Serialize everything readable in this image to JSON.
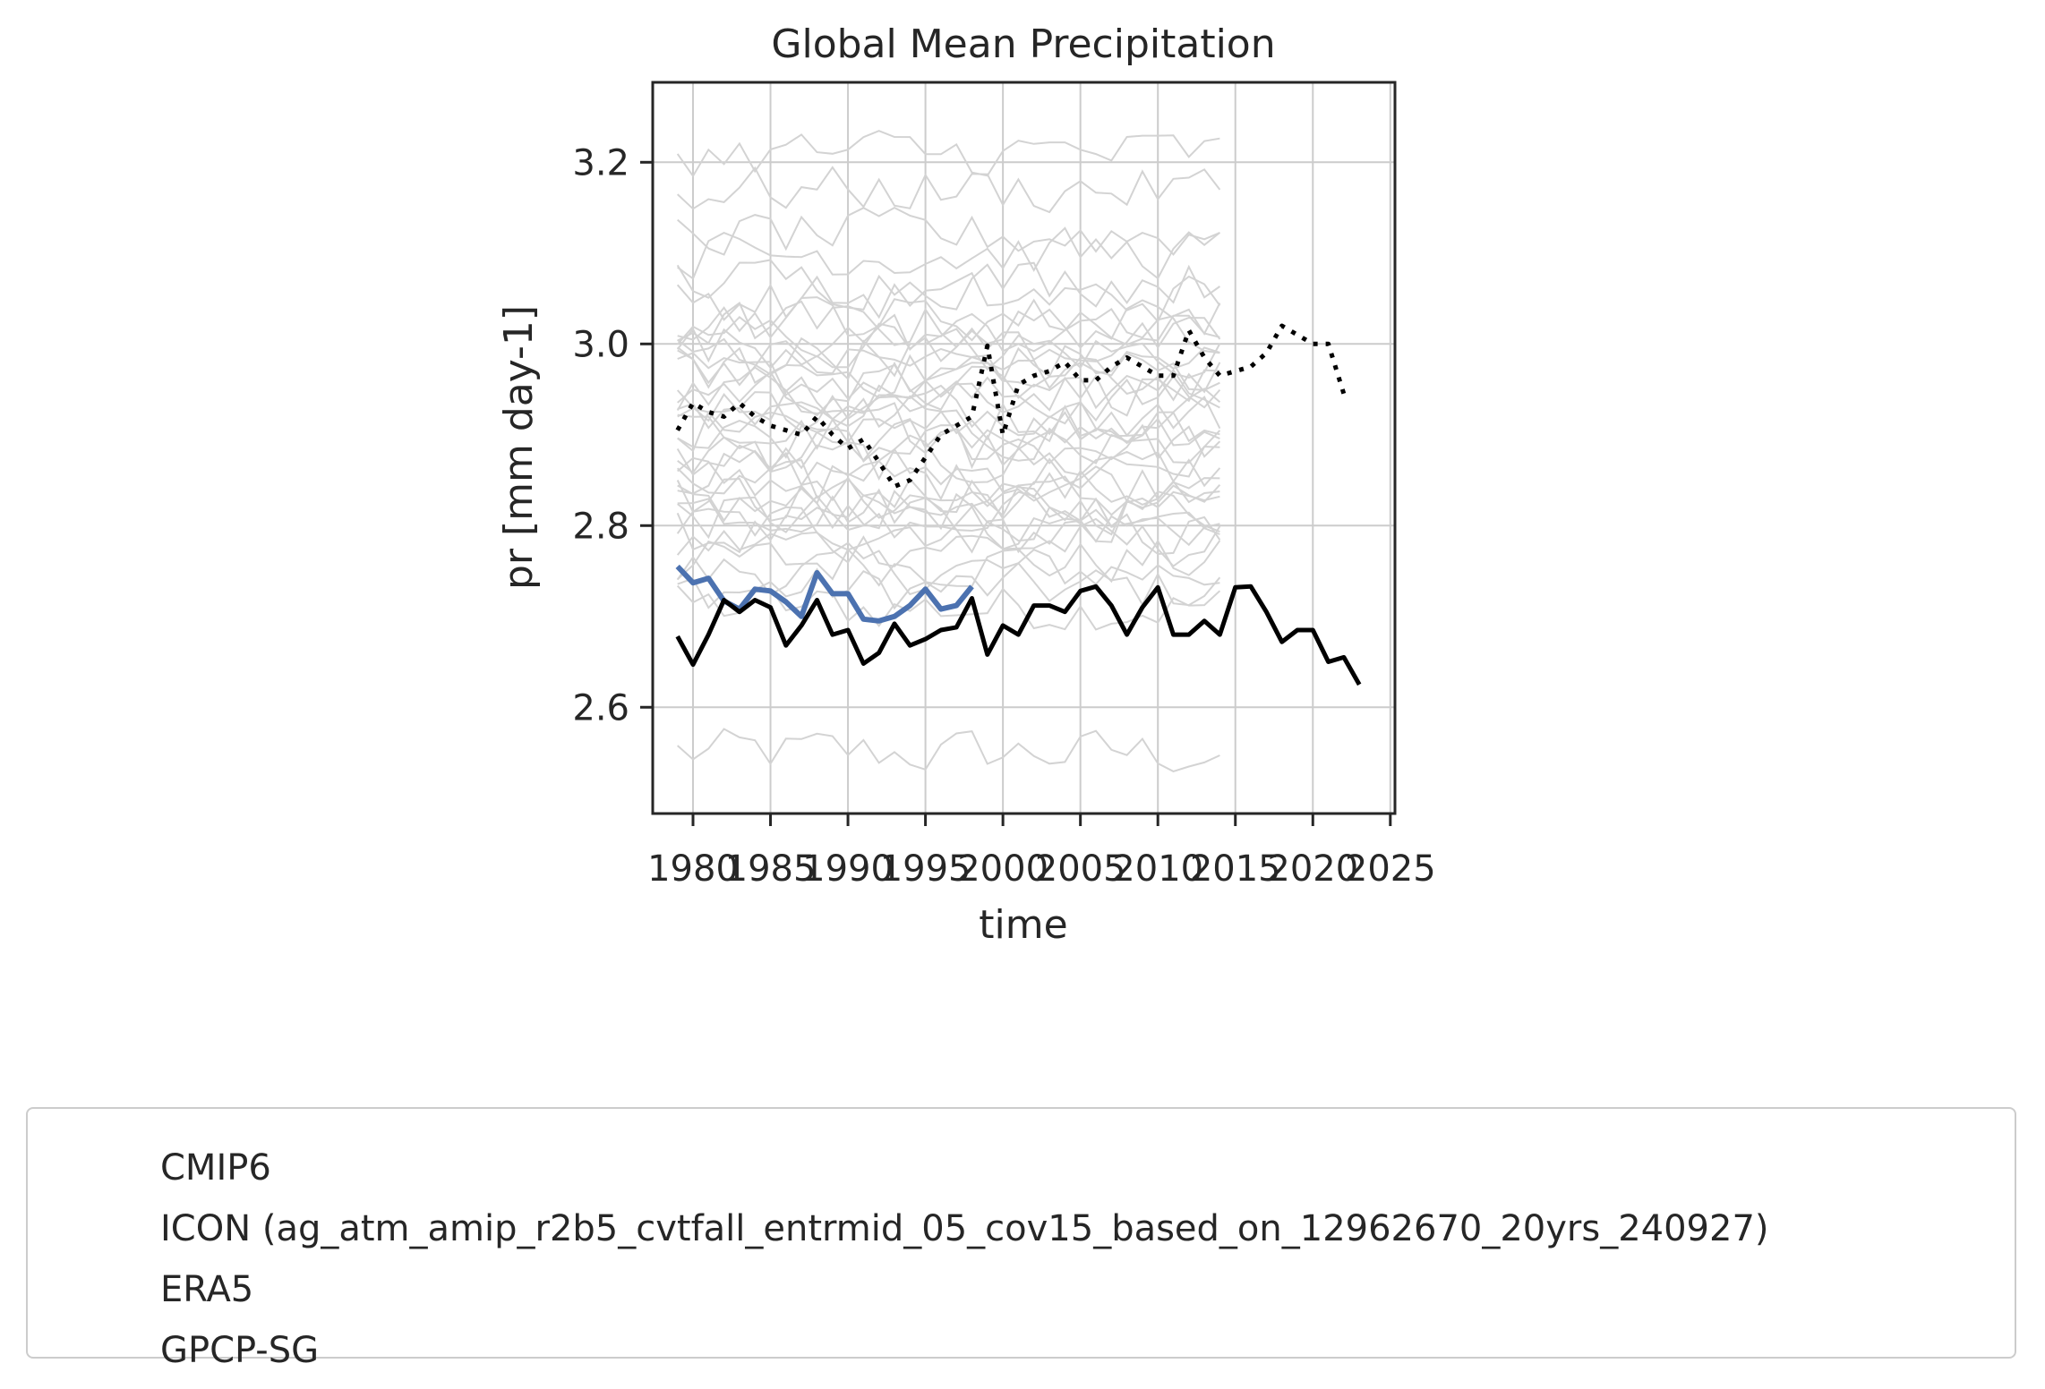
{
  "chart_data": {
    "type": "line",
    "title": "Global Mean Precipitation",
    "xlabel": "time",
    "ylabel": "pr [mm day-1]",
    "xlim": [
      1977.4,
      2025.3
    ],
    "ylim": [
      2.483,
      3.288
    ],
    "x_ticks": [
      1980,
      1985,
      1990,
      1995,
      2000,
      2005,
      2010,
      2015,
      2020,
      2025
    ],
    "x_tick_labels": [
      "1980",
      "1985",
      "1990",
      "1995",
      "2000",
      "2005",
      "2010",
      "2015",
      "2020",
      "2025"
    ],
    "y_ticks": [
      2.6,
      2.8,
      3.0,
      3.2
    ],
    "y_tick_labels": [
      "2.6",
      "2.8",
      "3.0",
      "3.2"
    ],
    "grid": true,
    "legend_position": "below",
    "cmip6_base_levels": [
      2.55,
      2.71,
      2.73,
      2.75,
      2.76,
      2.78,
      2.79,
      2.8,
      2.81,
      2.82,
      2.82,
      2.83,
      2.84,
      2.85,
      2.86,
      2.87,
      2.88,
      2.89,
      2.9,
      2.91,
      2.92,
      2.93,
      2.94,
      2.95,
      2.95,
      2.96,
      2.97,
      2.98,
      2.99,
      3.0,
      3.01,
      3.02,
      3.03,
      3.05,
      3.07,
      3.1,
      3.12,
      3.17,
      3.21
    ],
    "series": [
      {
        "name": "CMIP6",
        "style": "thin",
        "color": "#d3d3d3"
      },
      {
        "name": "ICON (ag_atm_amip_r2b5_cvtfall_entrmid_05_cov15_based_on_12962670_20yrs_240927)",
        "style": "solid-thick",
        "color": "#4c72b0",
        "x": [
          1979,
          1980,
          1981,
          1982,
          1983,
          1984,
          1985,
          1986,
          1987,
          1988,
          1989,
          1990,
          1991,
          1992,
          1993,
          1994,
          1995,
          1996,
          1997,
          1998
        ],
        "y": [
          2.755,
          2.737,
          2.742,
          2.717,
          2.708,
          2.73,
          2.728,
          2.716,
          2.7,
          2.748,
          2.725,
          2.725,
          2.697,
          2.695,
          2.7,
          2.712,
          2.73,
          2.708,
          2.712,
          2.733
        ]
      },
      {
        "name": "ERA5",
        "style": "dotted",
        "color": "#000000",
        "x": [
          1979,
          1980,
          1981,
          1982,
          1983,
          1984,
          1985,
          1986,
          1987,
          1988,
          1989,
          1990,
          1991,
          1992,
          1993,
          1994,
          1995,
          1996,
          1997,
          1998,
          1999,
          2000,
          2001,
          2002,
          2003,
          2004,
          2005,
          2006,
          2007,
          2008,
          2009,
          2010,
          2011,
          2012,
          2013,
          2014,
          2015,
          2016,
          2017,
          2018,
          2019,
          2020,
          2021,
          2022
        ],
        "y": [
          2.905,
          2.935,
          2.925,
          2.92,
          2.935,
          2.92,
          2.91,
          2.905,
          2.9,
          2.92,
          2.9,
          2.885,
          2.895,
          2.87,
          2.843,
          2.85,
          2.875,
          2.9,
          2.91,
          2.92,
          2.998,
          2.9,
          2.955,
          2.965,
          2.97,
          2.98,
          2.96,
          2.96,
          2.975,
          2.985,
          2.975,
          2.965,
          2.965,
          3.015,
          2.985,
          2.965,
          2.97,
          2.975,
          2.99,
          3.02,
          3.01,
          3.0,
          3.0,
          2.945
        ]
      },
      {
        "name": "GPCP-SG",
        "style": "solid",
        "color": "#000000",
        "x": [
          1979,
          1980,
          1981,
          1982,
          1983,
          1984,
          1985,
          1986,
          1987,
          1988,
          1989,
          1990,
          1991,
          1992,
          1993,
          1994,
          1995,
          1996,
          1997,
          1998,
          1999,
          2000,
          2001,
          2002,
          2003,
          2004,
          2005,
          2006,
          2007,
          2008,
          2009,
          2010,
          2011,
          2012,
          2013,
          2014,
          2015,
          2016,
          2017,
          2018,
          2019,
          2020,
          2021,
          2022,
          2023
        ],
        "y": [
          2.678,
          2.647,
          2.68,
          2.718,
          2.705,
          2.718,
          2.71,
          2.668,
          2.69,
          2.718,
          2.68,
          2.685,
          2.648,
          2.66,
          2.692,
          2.668,
          2.675,
          2.685,
          2.688,
          2.72,
          2.658,
          2.69,
          2.68,
          2.712,
          2.712,
          2.705,
          2.728,
          2.733,
          2.712,
          2.68,
          2.71,
          2.732,
          2.68,
          2.68,
          2.695,
          2.68,
          2.732,
          2.733,
          2.705,
          2.672,
          2.685,
          2.685,
          2.65,
          2.655,
          2.625
        ]
      }
    ]
  }
}
